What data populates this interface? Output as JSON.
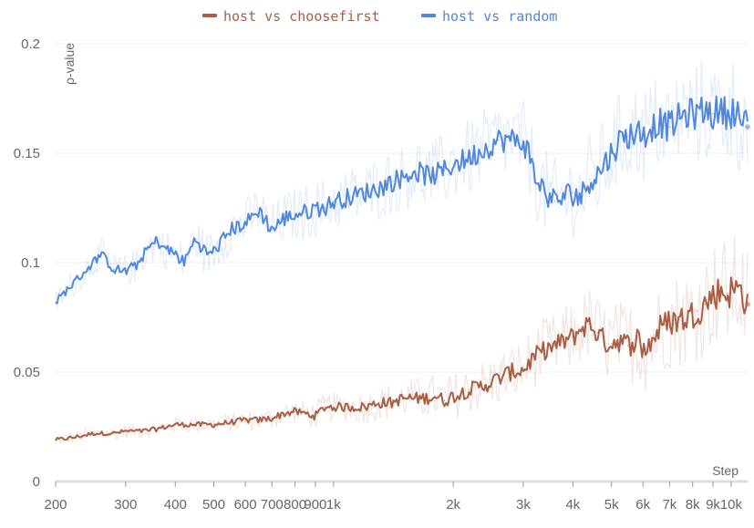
{
  "chart_data": {
    "type": "line",
    "title": "",
    "xlabel": "Step",
    "ylabel": "ρ-value",
    "x_scale": "log",
    "xlim": [
      200,
      11000
    ],
    "ylim": [
      0,
      0.2
    ],
    "grid": true,
    "legend_position": "top",
    "x_ticks": [
      {
        "value": 200,
        "label": "200"
      },
      {
        "value": 300,
        "label": "300"
      },
      {
        "value": 400,
        "label": "400"
      },
      {
        "value": 500,
        "label": "500"
      },
      {
        "value": 600,
        "label": "600"
      },
      {
        "value": 700,
        "label": "700"
      },
      {
        "value": 800,
        "label": "800"
      },
      {
        "value": 900,
        "label": "900"
      },
      {
        "value": 1000,
        "label": "1k"
      },
      {
        "value": 2000,
        "label": "2k"
      },
      {
        "value": 3000,
        "label": "3k"
      },
      {
        "value": 4000,
        "label": "4k"
      },
      {
        "value": 5000,
        "label": "5k"
      },
      {
        "value": 6000,
        "label": "6k"
      },
      {
        "value": 7000,
        "label": "7k"
      },
      {
        "value": 8000,
        "label": "8k"
      },
      {
        "value": 9000,
        "label": "9k"
      },
      {
        "value": 10000,
        "label": "10k"
      }
    ],
    "y_ticks": [
      {
        "value": 0,
        "label": "0"
      },
      {
        "value": 0.05,
        "label": "0.05"
      },
      {
        "value": 0.1,
        "label": "0.1"
      },
      {
        "value": 0.15,
        "label": "0.15"
      },
      {
        "value": 0.2,
        "label": "0.2"
      }
    ],
    "series": [
      {
        "name": "host vs choosefirst",
        "color": "#a85f45",
        "x": [
          200,
          220,
          250,
          280,
          300,
          330,
          360,
          400,
          450,
          500,
          550,
          600,
          650,
          700,
          750,
          800,
          850,
          900,
          950,
          1000,
          1100,
          1200,
          1300,
          1400,
          1500,
          1600,
          1700,
          1800,
          1900,
          2000,
          2200,
          2400,
          2600,
          2800,
          3000,
          3200,
          3400,
          3600,
          3800,
          4000,
          4200,
          4400,
          4600,
          4800,
          5000,
          5200,
          5500,
          5800,
          6000,
          6300,
          6600,
          7000,
          7400,
          7800,
          8200,
          8600,
          9000,
          9400,
          9800,
          10200,
          10600,
          11000
        ],
        "values": [
          0.019,
          0.02,
          0.022,
          0.022,
          0.023,
          0.023,
          0.024,
          0.026,
          0.026,
          0.026,
          0.027,
          0.028,
          0.028,
          0.029,
          0.031,
          0.032,
          0.031,
          0.03,
          0.034,
          0.034,
          0.034,
          0.034,
          0.036,
          0.036,
          0.038,
          0.038,
          0.038,
          0.039,
          0.037,
          0.039,
          0.042,
          0.044,
          0.047,
          0.05,
          0.051,
          0.057,
          0.06,
          0.062,
          0.064,
          0.066,
          0.07,
          0.072,
          0.068,
          0.064,
          0.063,
          0.065,
          0.062,
          0.066,
          0.06,
          0.064,
          0.07,
          0.073,
          0.074,
          0.075,
          0.078,
          0.081,
          0.085,
          0.087,
          0.086,
          0.088,
          0.087,
          0.081
        ]
      },
      {
        "name": "host vs random",
        "color": "#5187dc",
        "x": [
          200,
          220,
          240,
          260,
          280,
          300,
          320,
          340,
          360,
          380,
          400,
          420,
          450,
          480,
          500,
          550,
          600,
          650,
          700,
          750,
          800,
          850,
          900,
          950,
          1000,
          1100,
          1200,
          1300,
          1400,
          1500,
          1600,
          1700,
          1800,
          1900,
          2000,
          2200,
          2400,
          2600,
          2800,
          3000,
          3100,
          3200,
          3400,
          3600,
          3800,
          4000,
          4200,
          4400,
          4600,
          4800,
          5000,
          5200,
          5500,
          5800,
          6000,
          6300,
          6600,
          7000,
          7400,
          7800,
          8200,
          8600,
          9000,
          9400,
          9800,
          10200,
          10600,
          11000
        ],
        "values": [
          0.082,
          0.09,
          0.097,
          0.104,
          0.097,
          0.096,
          0.099,
          0.106,
          0.11,
          0.106,
          0.104,
          0.1,
          0.111,
          0.104,
          0.105,
          0.115,
          0.118,
          0.124,
          0.115,
          0.12,
          0.122,
          0.123,
          0.125,
          0.125,
          0.128,
          0.13,
          0.132,
          0.134,
          0.137,
          0.139,
          0.142,
          0.14,
          0.14,
          0.142,
          0.145,
          0.148,
          0.152,
          0.156,
          0.156,
          0.155,
          0.15,
          0.14,
          0.132,
          0.128,
          0.13,
          0.132,
          0.13,
          0.138,
          0.14,
          0.145,
          0.15,
          0.155,
          0.158,
          0.16,
          0.158,
          0.162,
          0.164,
          0.162,
          0.166,
          0.168,
          0.168,
          0.17,
          0.168,
          0.17,
          0.168,
          0.17,
          0.165,
          0.162
        ]
      }
    ]
  }
}
